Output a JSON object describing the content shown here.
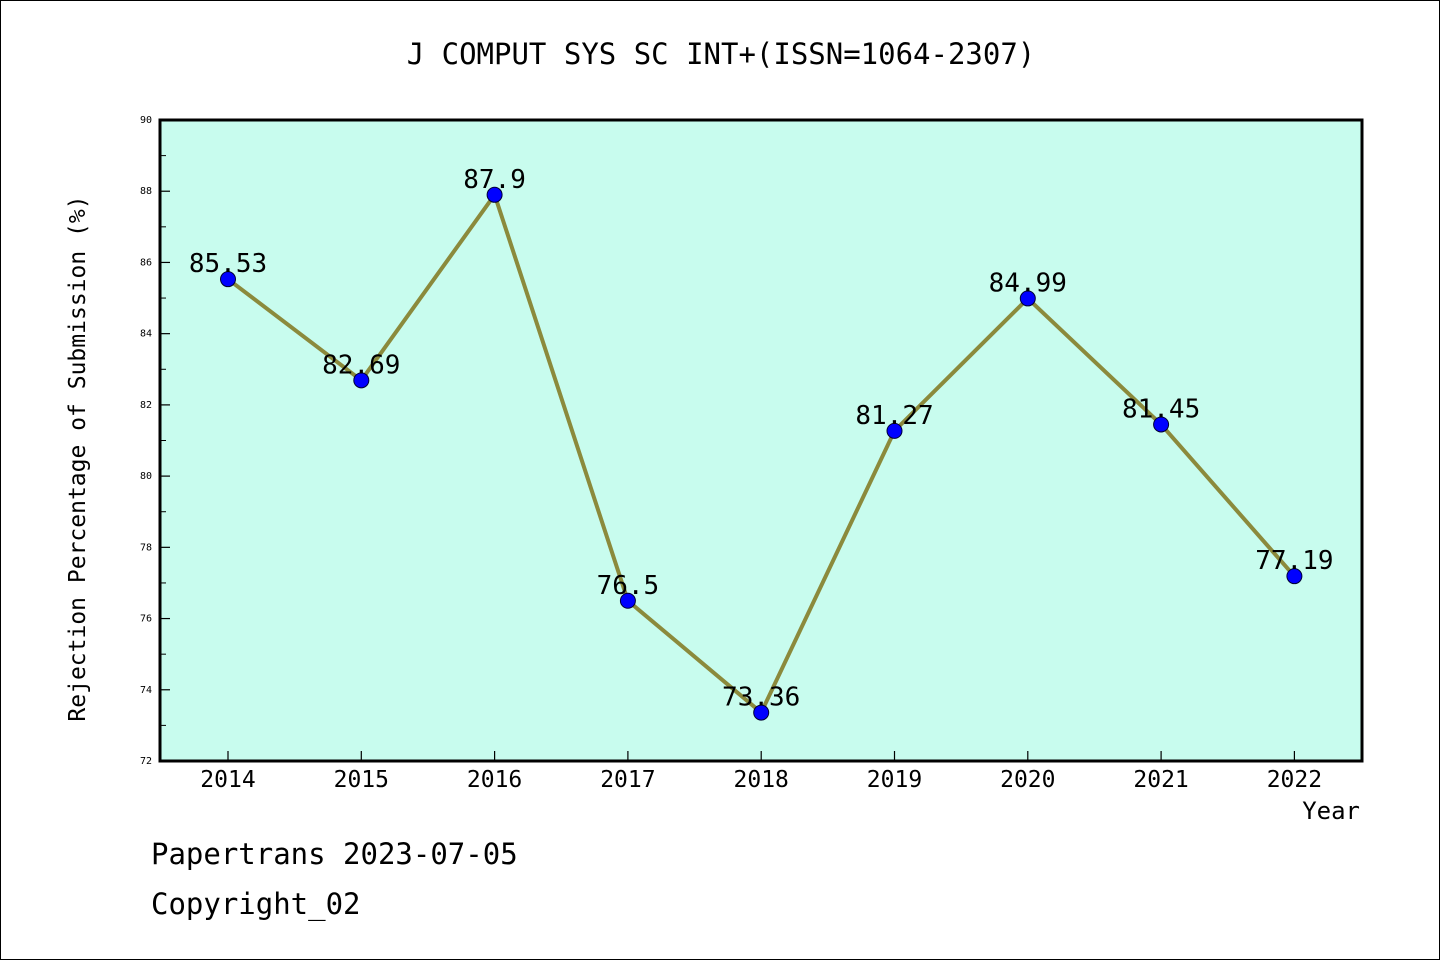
{
  "title": "J COMPUT SYS SC INT+(ISSN=1064-2307)",
  "footer": {
    "line1": "Papertrans 2023-07-05",
    "line2": "Copyright_02"
  },
  "colors": {
    "plot_bg": "#c8fcee",
    "line": "#8b8a3c",
    "marker": "#0000ff"
  },
  "chart_data": {
    "type": "line",
    "title": "J COMPUT SYS SC INT+(ISSN=1064-2307)",
    "xlabel": "Year",
    "ylabel": "Rejection Percentage of Submission (%)",
    "categories": [
      "2014",
      "2015",
      "2016",
      "2017",
      "2018",
      "2019",
      "2020",
      "2021",
      "2022"
    ],
    "values": [
      85.53,
      82.69,
      87.9,
      76.5,
      73.36,
      81.27,
      84.99,
      81.45,
      77.19
    ],
    "data_labels": [
      "85.53",
      "82.69",
      "87.9",
      "76.5",
      "73.36",
      "81.27",
      "84.99",
      "81.45",
      "77.19"
    ],
    "ylim": [
      72,
      90
    ],
    "yticks": [
      "72",
      "74",
      "76",
      "78",
      "80",
      "82",
      "84",
      "86",
      "88",
      "90"
    ],
    "grid": false,
    "legend": "none"
  }
}
